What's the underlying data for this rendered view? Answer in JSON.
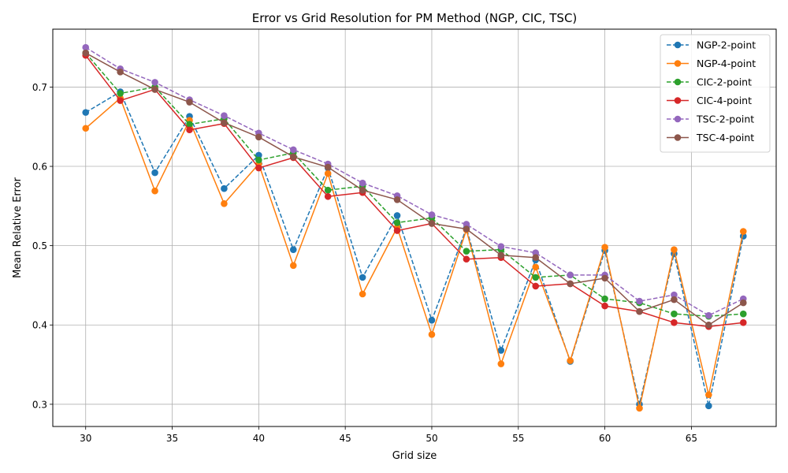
{
  "chart_data": {
    "type": "line",
    "title": "Error vs Grid Resolution for PM Method (NGP, CIC, TSC)",
    "xlabel": "Grid size",
    "ylabel": "Mean Relative Error",
    "xlim": [
      28.1,
      69.9
    ],
    "ylim": [
      0.272,
      0.773
    ],
    "xticks": [
      30,
      35,
      40,
      45,
      50,
      55,
      60,
      65
    ],
    "yticks": [
      0.3,
      0.4,
      0.5,
      0.6,
      0.7
    ],
    "grid": true,
    "legend_position": "top-right",
    "x": [
      30,
      32,
      34,
      36,
      38,
      40,
      42,
      44,
      46,
      48,
      50,
      52,
      54,
      56,
      58,
      60,
      62,
      64,
      66,
      68
    ],
    "series": [
      {
        "name": "NGP-2-point",
        "color": "#1f77b4",
        "dashed": true,
        "values": [
          0.668,
          0.694,
          0.592,
          0.663,
          0.572,
          0.614,
          0.495,
          0.598,
          0.46,
          0.538,
          0.406,
          0.522,
          0.368,
          0.482,
          0.354,
          0.494,
          0.3,
          0.49,
          0.298,
          0.512
        ]
      },
      {
        "name": "NGP-4-point",
        "color": "#ff7f0e",
        "dashed": false,
        "values": [
          0.648,
          0.686,
          0.569,
          0.658,
          0.553,
          0.603,
          0.475,
          0.591,
          0.439,
          0.523,
          0.388,
          0.52,
          0.351,
          0.473,
          0.355,
          0.498,
          0.295,
          0.495,
          0.312,
          0.518
        ]
      },
      {
        "name": "CIC-2-point",
        "color": "#2ca02c",
        "dashed": true,
        "values": [
          0.743,
          0.692,
          0.7,
          0.653,
          0.66,
          0.608,
          0.617,
          0.57,
          0.575,
          0.529,
          0.535,
          0.493,
          0.495,
          0.46,
          0.463,
          0.433,
          0.428,
          0.414,
          0.411,
          0.414
        ]
      },
      {
        "name": "CIC-4-point",
        "color": "#d62728",
        "dashed": false,
        "values": [
          0.74,
          0.683,
          0.697,
          0.646,
          0.654,
          0.598,
          0.611,
          0.562,
          0.567,
          0.519,
          0.528,
          0.483,
          0.485,
          0.449,
          0.452,
          0.424,
          0.417,
          0.403,
          0.398,
          0.403
        ]
      },
      {
        "name": "TSC-2-point",
        "color": "#9467bd",
        "dashed": true,
        "values": [
          0.75,
          0.723,
          0.706,
          0.684,
          0.664,
          0.642,
          0.621,
          0.603,
          0.579,
          0.563,
          0.539,
          0.527,
          0.499,
          0.491,
          0.463,
          0.463,
          0.43,
          0.438,
          0.412,
          0.433
        ]
      },
      {
        "name": "TSC-4-point",
        "color": "#8c564b",
        "dashed": false,
        "values": [
          0.743,
          0.719,
          0.697,
          0.681,
          0.655,
          0.637,
          0.612,
          0.599,
          0.57,
          0.558,
          0.528,
          0.521,
          0.488,
          0.485,
          0.452,
          0.459,
          0.417,
          0.432,
          0.4,
          0.428
        ]
      }
    ]
  }
}
